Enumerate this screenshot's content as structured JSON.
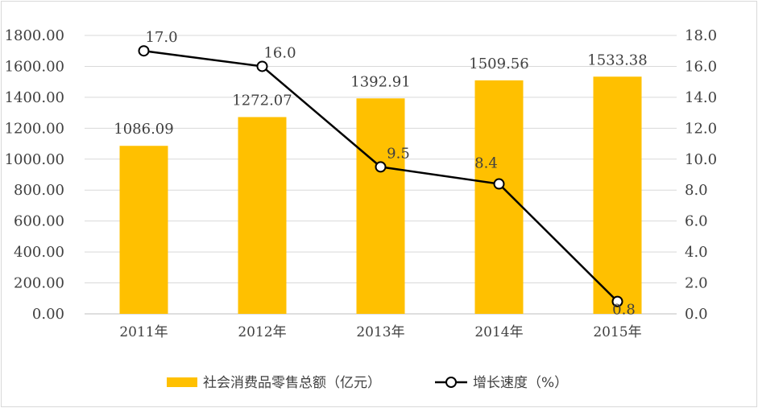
{
  "chart_data": {
    "type": "bar",
    "categories": [
      "2011年",
      "2012年",
      "2013年",
      "2014年",
      "2015年"
    ],
    "series": [
      {
        "name": "社会消费品零售总额（亿元）",
        "type": "bar",
        "axis": "left",
        "values": [
          1086.09,
          1272.07,
          1392.91,
          1509.56,
          1533.38
        ],
        "labels": [
          "1086.09",
          "1272.07",
          "1392.91",
          "1509.56",
          "1533.38"
        ],
        "color": "#FFC000"
      },
      {
        "name": "增长速度（%）",
        "type": "line",
        "axis": "right",
        "values": [
          17.0,
          16.0,
          9.5,
          8.4,
          0.8
        ],
        "labels": [
          "17.0",
          "16.0",
          "9.5",
          "8.4",
          "0.8"
        ],
        "color": "#000000"
      }
    ],
    "y_left": {
      "ylim": [
        0,
        1800
      ],
      "ticks": [
        "0.00",
        "200.00",
        "400.00",
        "600.00",
        "800.00",
        "1000.00",
        "1200.00",
        "1400.00",
        "1600.00",
        "1800.00"
      ]
    },
    "y_right": {
      "ylim": [
        0,
        18
      ],
      "ticks": [
        "0.0",
        "2.0",
        "4.0",
        "6.0",
        "8.0",
        "10.0",
        "12.0",
        "14.0",
        "16.0",
        "18.0"
      ]
    },
    "grid": true,
    "legend": "bottom",
    "title": "",
    "xlabel": "",
    "ylabel": ""
  }
}
